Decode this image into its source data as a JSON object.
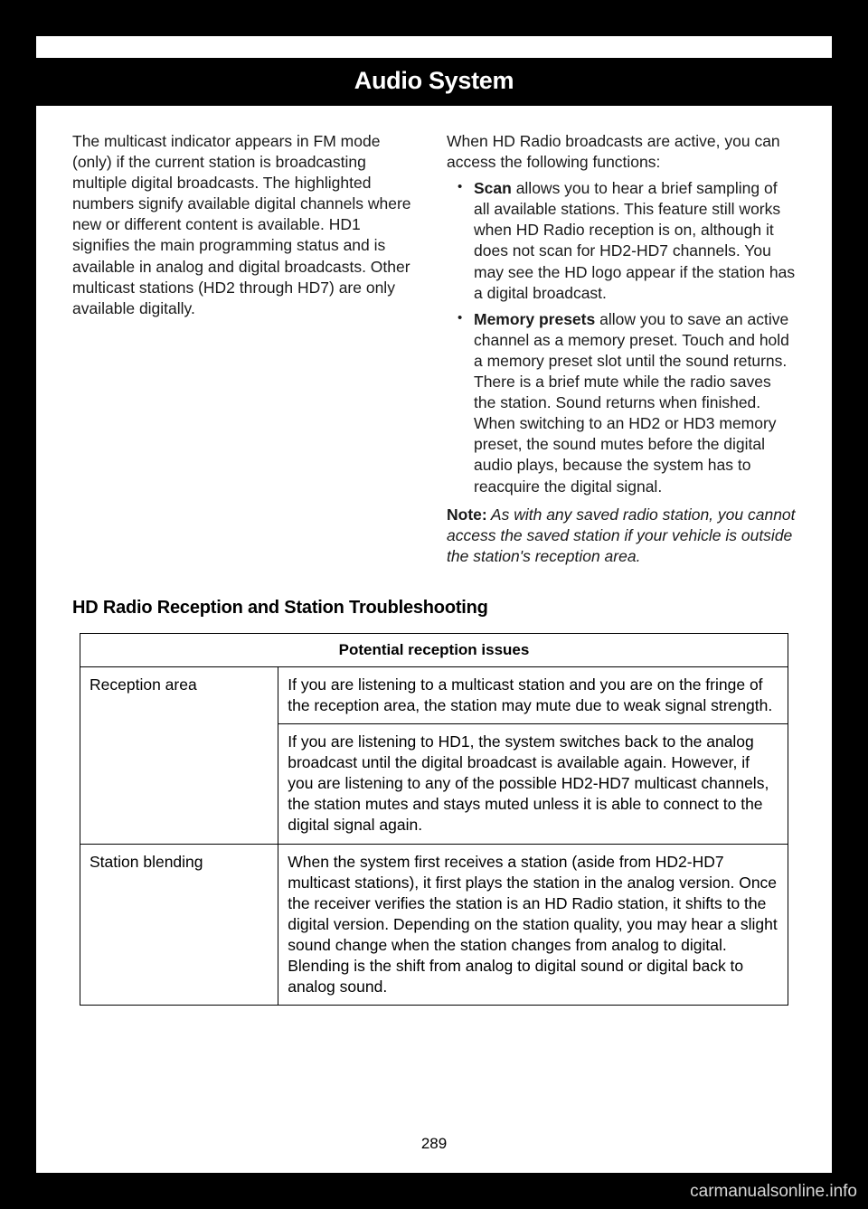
{
  "header": {
    "title": "Audio System"
  },
  "leftColumn": {
    "p1": "The multicast indicator appears in FM mode (only) if the current station is broadcasting multiple digital broadcasts. The highlighted numbers signify available digital channels where new or different content is available. HD1 signifies the main programming status and is available in analog and digital broadcasts. Other multicast stations (HD2 through HD7) are only available digitally."
  },
  "rightColumn": {
    "intro": "When HD Radio broadcasts are active, you can access the following functions:",
    "bullets": [
      {
        "bold": "Scan",
        "text": " allows you to hear a brief sampling of all available stations. This feature still works when HD Radio reception is on, although it does not scan for HD2-HD7 channels. You may see the HD logo appear if the station has a digital broadcast."
      },
      {
        "bold": "Memory presets",
        "text": " allow you to save an active channel as a memory preset. Touch and hold a memory preset slot until the sound returns. There is a brief mute while the radio saves the station. Sound returns when finished. When switching to an HD2 or HD3 memory preset, the sound mutes before the digital audio plays, because the system has to reacquire the digital signal."
      }
    ],
    "noteLabel": "Note:",
    "noteText": " As with any saved radio station, you cannot access the saved station if your vehicle is outside the station's reception area."
  },
  "section": {
    "heading": "HD Radio Reception and Station Troubleshooting",
    "tableHeader": "Potential reception issues",
    "rows": [
      {
        "label": "Reception area",
        "rowspan": 2,
        "cell": "If you are listening to a multicast station and you are on the fringe of the reception area, the station may mute due to weak signal strength."
      },
      {
        "label": "",
        "cell": "If you are listening to HD1, the system switches back to the analog broadcast until the digital broadcast is available again. However, if you are listening to any of the possible HD2-HD7 multicast channels, the station mutes and stays muted unless it is able to connect to the digital signal again."
      },
      {
        "label": "Station blending",
        "rowspan": 1,
        "cell": "When the system first receives a station (aside from HD2-HD7 multicast stations), it first plays the station in the analog version. Once the receiver verifies the station is an HD Radio station, it shifts to the digital version. Depending on the station quality, you may hear a slight sound change when the station changes from analog to digital. Blending is the shift from analog to digital sound or digital back to analog sound."
      }
    ]
  },
  "pageNumber": "289",
  "watermark": "carmanualsonline.info"
}
